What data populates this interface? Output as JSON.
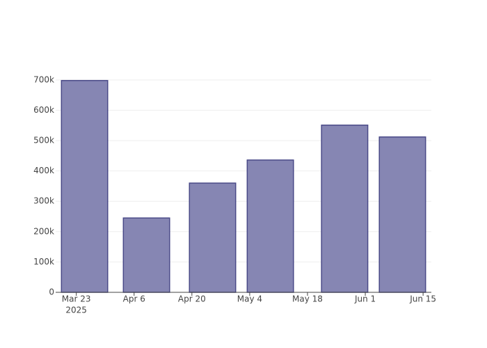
{
  "chart_data": {
    "type": "bar",
    "x": [
      "2025-03-25",
      "2025-04-09",
      "2025-04-25",
      "2025-05-09",
      "2025-05-27",
      "2025-06-10"
    ],
    "values": [
      698000,
      245000,
      360000,
      436000,
      551000,
      512000
    ],
    "color": "#7f7faf",
    "edgecolor": "#4a4a88",
    "xlim": [
      "2025-03-18",
      "2025-06-17"
    ],
    "xticks": [
      {
        "value": "2025-03-23",
        "label": "Mar 23"
      },
      {
        "value": "2025-04-06",
        "label": "Apr 6"
      },
      {
        "value": "2025-04-20",
        "label": "Apr 20"
      },
      {
        "value": "2025-05-04",
        "label": "May 4"
      },
      {
        "value": "2025-05-18",
        "label": "May 18"
      },
      {
        "value": "2025-06-01",
        "label": "Jun 1"
      },
      {
        "value": "2025-06-15",
        "label": "Jun 15"
      }
    ],
    "x_year_label": "2025",
    "ylim": [
      0,
      734000
    ],
    "yticks": [
      0,
      {
        "value": 100000,
        "label": "100k"
      },
      {
        "value": 200000,
        "label": "200k"
      },
      {
        "value": 300000,
        "label": "300k"
      },
      {
        "value": 400000,
        "label": "400k"
      },
      {
        "value": 500000,
        "label": "500k"
      },
      {
        "value": 600000,
        "label": "600k"
      },
      {
        "value": 700000,
        "label": "700k"
      }
    ],
    "grid": true
  }
}
